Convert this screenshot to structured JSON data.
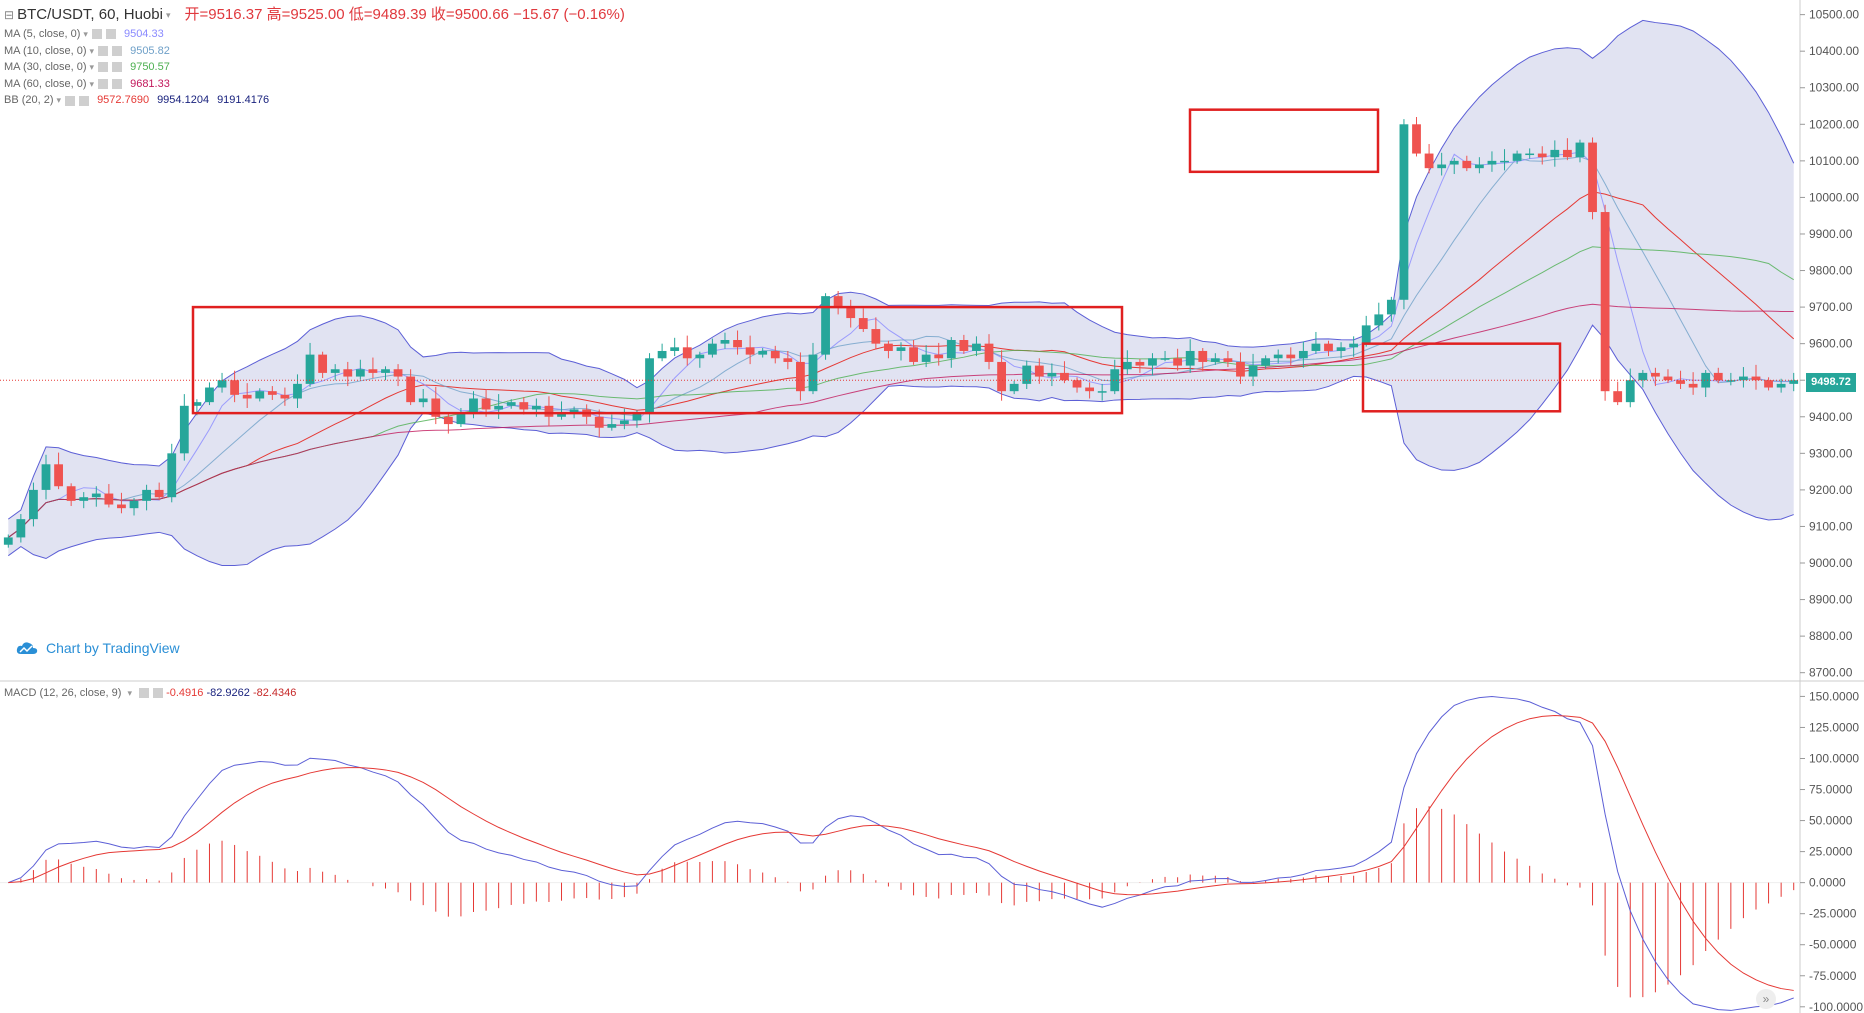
{
  "header": {
    "symbol": "BTC/USDT, 60, Huobi",
    "ohlc": "开=9516.37  高=9525.00  低=9489.39  收=9500.66  −15.67 (−0.16%)"
  },
  "indicators": [
    {
      "label": "MA (5, close, 0)",
      "values": [
        "9504.33"
      ],
      "colors": [
        "#8a8aff"
      ]
    },
    {
      "label": "MA (10, close, 0)",
      "values": [
        "9505.82"
      ],
      "colors": [
        "#6fa0c8"
      ]
    },
    {
      "label": "MA (30, close, 0)",
      "values": [
        "9750.57"
      ],
      "colors": [
        "#4caf50"
      ]
    },
    {
      "label": "MA (60, close, 0)",
      "values": [
        "9681.33"
      ],
      "colors": [
        "#c2185b"
      ]
    },
    {
      "label": "BB (20, 2)",
      "values": [
        "9572.7690",
        "9954.1204",
        "9191.4176"
      ],
      "colors": [
        "#e53935",
        "#1a237e",
        "#1a237e"
      ]
    }
  ],
  "macd_legend": {
    "label": "MACD (12, 26, close, 9)",
    "values": [
      "-0.4916",
      "-82.9262",
      "-82.4346"
    ],
    "colors": [
      "#e53935",
      "#1a237e",
      "#c62828"
    ]
  },
  "brand": "Chart by TradingView",
  "last_price_label": "9498.72",
  "colors": {
    "up": "#26a69a",
    "down": "#ef5350",
    "bb_fill": "#d7d9ee",
    "bb_line": "#5c5fd6",
    "highlight": "#e02020"
  },
  "chart_data": {
    "type": "candlestick",
    "price_axis": {
      "ticks": [
        "10500.00",
        "10400.00",
        "10300.00",
        "10200.00",
        "10100.00",
        "10000.00",
        "9900.00",
        "9800.00",
        "9700.00",
        "9600.00",
        "9500.00",
        "9400.00",
        "9300.00",
        "9200.00",
        "9100.00",
        "9000.00",
        "8900.00",
        "8800.00",
        "8700.00"
      ],
      "ylim": [
        8680,
        10540
      ]
    },
    "macd_axis": {
      "ticks": [
        "150.0000",
        "125.0000",
        "100.0000",
        "75.0000",
        "50.0000",
        "25.0000",
        "0.0000",
        "-25.0000",
        "-50.0000",
        "-75.0000",
        "-100.0000"
      ],
      "ylim": [
        -105,
        160
      ]
    },
    "candles_close": [
      9070,
      9120,
      9200,
      9270,
      9210,
      9170,
      9180,
      9190,
      9160,
      9150,
      9170,
      9200,
      9180,
      9300,
      9430,
      9440,
      9480,
      9500,
      9460,
      9450,
      9470,
      9460,
      9450,
      9490,
      9570,
      9520,
      9530,
      9510,
      9530,
      9520,
      9530,
      9510,
      9440,
      9450,
      9400,
      9380,
      9410,
      9450,
      9420,
      9430,
      9440,
      9420,
      9430,
      9400,
      9410,
      9420,
      9400,
      9370,
      9380,
      9390,
      9410,
      9560,
      9580,
      9590,
      9560,
      9570,
      9600,
      9610,
      9590,
      9570,
      9580,
      9560,
      9550,
      9470,
      9570,
      9730,
      9700,
      9670,
      9640,
      9600,
      9580,
      9590,
      9550,
      9570,
      9560,
      9610,
      9580,
      9600,
      9550,
      9470,
      9490,
      9540,
      9510,
      9520,
      9500,
      9480,
      9470,
      9470,
      9530,
      9550,
      9540,
      9560,
      9560,
      9540,
      9580,
      9550,
      9560,
      9550,
      9510,
      9540,
      9560,
      9570,
      9560,
      9580,
      9600,
      9580,
      9590,
      9600,
      9650,
      9680,
      9720,
      10200,
      10120,
      10080,
      10090,
      10100,
      10080,
      10090,
      10100,
      10100,
      10120,
      10120,
      10110,
      10130,
      10110,
      10150,
      9960,
      9470,
      9440,
      9500,
      9520,
      9510,
      9500,
      9490,
      9480,
      9520,
      9500,
      9500,
      9510,
      9500,
      9480,
      9490,
      9500
    ],
    "highlight_boxes": [
      {
        "price_range": [
          9410,
          9700
        ]
      },
      {
        "price_range": [
          10070,
          10240
        ]
      },
      {
        "price_range": [
          9415,
          9600
        ]
      }
    ]
  }
}
